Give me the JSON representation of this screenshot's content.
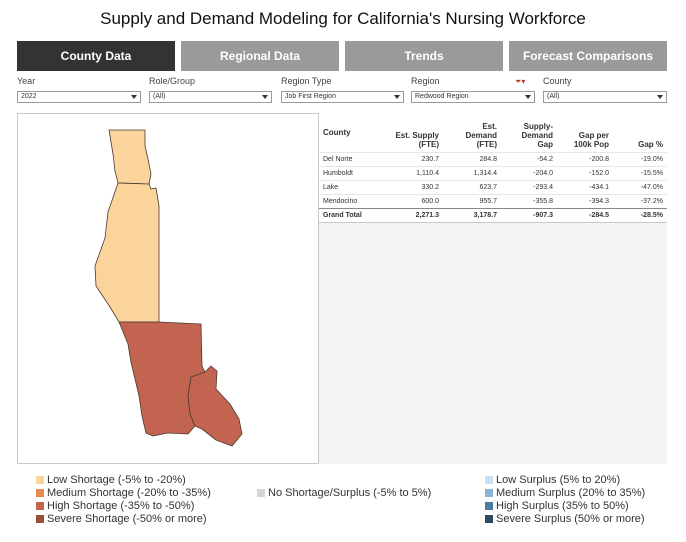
{
  "title": "Supply and Demand Modeling for California's Nursing Workforce",
  "tabs": [
    {
      "label": "County Data",
      "active": true
    },
    {
      "label": "Regional Data",
      "active": false
    },
    {
      "label": "Trends",
      "active": false
    },
    {
      "label": "Forecast Comparisons",
      "active": false
    }
  ],
  "filters": {
    "year": {
      "label": "Year",
      "value": "2022"
    },
    "role": {
      "label": "Role/Group",
      "value": "(All)"
    },
    "region_type": {
      "label": "Region Type",
      "value": "Job First Region"
    },
    "region": {
      "label": "Region",
      "value": "Redwood Region"
    },
    "county": {
      "label": "County",
      "value": "(All)"
    }
  },
  "table": {
    "headers": {
      "county": "County",
      "supply_1": "Est. Supply",
      "supply_2": "(FTE)",
      "demand_1": "Est.",
      "demand_2": "Demand",
      "demand_3": "(FTE)",
      "gap_1": "Supply-",
      "gap_2": "Demand",
      "gap_3": "Gap",
      "per100k_1": "Gap per",
      "per100k_2": "100k Pop",
      "pct": "Gap %"
    },
    "rows": [
      {
        "county": "Del Norte",
        "supply": "230.7",
        "demand": "284.8",
        "gap": "-54.2",
        "per100k": "-200.8",
        "pct": "-19.0%"
      },
      {
        "county": "Humboldt",
        "supply": "1,110.4",
        "demand": "1,314.4",
        "gap": "-204.0",
        "per100k": "-152.0",
        "pct": "-15.5%"
      },
      {
        "county": "Lake",
        "supply": "330.2",
        "demand": "623.7",
        "gap": "-293.4",
        "per100k": "-434.1",
        "pct": "-47.0%"
      },
      {
        "county": "Mendocino",
        "supply": "600.0",
        "demand": "955.7",
        "gap": "-355.8",
        "per100k": "-394.3",
        "pct": "-37.2%"
      }
    ],
    "total": {
      "county": "Grand Total",
      "supply": "2,271.3",
      "demand": "3,178.7",
      "gap": "-907.3",
      "per100k": "-284.5",
      "pct": "-28.5%"
    }
  },
  "map": {
    "colors": {
      "low_shortage": "#fad49b",
      "severe_shortage": "#c2644f",
      "border": "#4a3a30"
    }
  },
  "legend": {
    "shortage": [
      {
        "label": "Low Shortage (-5% to -20%)",
        "color": "#fad49b"
      },
      {
        "label": "Medium Shortage (-20% to -35%)",
        "color": "#ec8b4f"
      },
      {
        "label": "High Shortage (-35% to -50%)",
        "color": "#c2644f"
      },
      {
        "label": "Severe Shortage (-50% or more)",
        "color": "#9c4f3d"
      }
    ],
    "neutral": {
      "label": "No Shortage/Surplus (-5% to 5%)",
      "color": "#d6d6d6"
    },
    "surplus": [
      {
        "label": "Low Surplus (5% to 20%)",
        "color": "#c9e1f2"
      },
      {
        "label": "Medium Surplus (20% to 35%)",
        "color": "#8db5d3"
      },
      {
        "label": "High Surplus (35% to 50%)",
        "color": "#4e7a9c"
      },
      {
        "label": "Severe Surplus (50% or more)",
        "color": "#2f4c63"
      }
    ]
  }
}
